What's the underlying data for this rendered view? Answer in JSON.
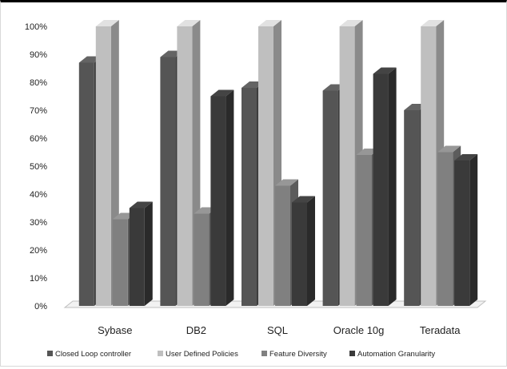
{
  "chart_data": {
    "type": "bar",
    "subtype": "3d-clustered-column",
    "categories": [
      "Sybase",
      "DB2",
      "SQL",
      "Oracle 10g",
      "Teradata"
    ],
    "series": [
      {
        "name": "Closed Loop controller",
        "color": "#555555",
        "values": [
          87,
          89,
          78,
          77,
          70
        ]
      },
      {
        "name": "User Defined Policies",
        "color": "#bfbfbf",
        "values": [
          100,
          100,
          100,
          100,
          100
        ]
      },
      {
        "name": "Feature Diversity",
        "color": "#808080",
        "values": [
          31,
          33,
          43,
          54,
          55
        ]
      },
      {
        "name": "Automation Granularity",
        "color": "#3a3a3a",
        "values": [
          35,
          75,
          37,
          83,
          52
        ]
      }
    ],
    "yticks": [
      "0%",
      "10%",
      "20%",
      "30%",
      "40%",
      "50%",
      "60%",
      "70%",
      "80%",
      "90%",
      "100%"
    ],
    "ylim": [
      0,
      100
    ],
    "grid": false,
    "legend_position": "bottom",
    "title": "",
    "xlabel": "",
    "ylabel": ""
  }
}
